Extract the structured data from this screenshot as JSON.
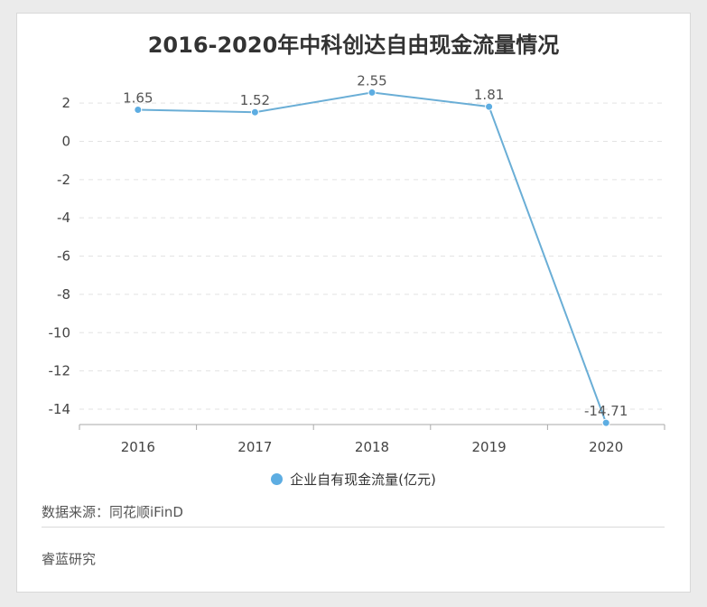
{
  "chart_data": {
    "type": "line",
    "title": "2016-2020年中科创达自由现金流量情况",
    "categories": [
      "2016",
      "2017",
      "2018",
      "2019",
      "2020"
    ],
    "series": [
      {
        "name": "企业自有现金流量(亿元)",
        "values": [
          1.65,
          1.52,
          2.55,
          1.81,
          -14.71
        ]
      }
    ],
    "data_labels": [
      "1.65",
      "1.52",
      "2.55",
      "1.81",
      "-14.71"
    ],
    "yticks": [
      2,
      0,
      -2,
      -4,
      -6,
      -8,
      -10,
      -12,
      -14
    ],
    "ylim": [
      -14.8,
      2.9
    ],
    "grid": true,
    "legend_position": "bottom",
    "line_color": "#6aaed6",
    "marker_color": "#5dade2"
  },
  "legend": {
    "label": "企业自有现金流量(亿元)"
  },
  "source": "数据来源：同花顺iFinD",
  "footer": "睿蓝研究"
}
